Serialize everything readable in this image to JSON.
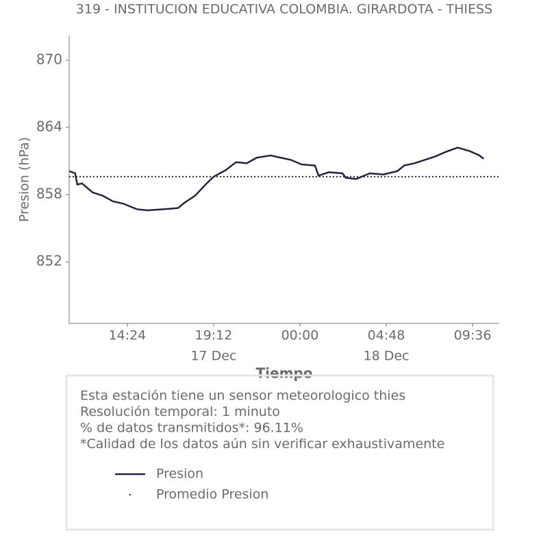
{
  "chart_data": {
    "type": "line",
    "title": "319 - INSTITUCION EDUCATIVA COLOMBIA. GIRARDOTA - THIESS",
    "xlabel": "Tiempo",
    "ylabel": "Presion (hPa)",
    "x": [
      "17 Dec 11:10",
      "17 Dec 11:30",
      "17 Dec 11:37",
      "17 Dec 11:53",
      "17 Dec 12:28",
      "17 Dec 13:02",
      "17 Dec 13:36",
      "17 Dec 14:10",
      "17 Dec 14:56",
      "17 Dec 15:30",
      "17 Dec 16:28",
      "17 Dec 17:13",
      "17 Dec 17:36",
      "17 Dec 18:10",
      "17 Dec 18:45",
      "17 Dec 19:12",
      "17 Dec 19:53",
      "17 Dec 20:27",
      "17 Dec 21:02",
      "17 Dec 21:36",
      "17 Dec 22:22",
      "17 Dec 22:56",
      "17 Dec 23:30",
      "18 Dec 00:05",
      "18 Dec 00:50",
      "18 Dec 01:02",
      "18 Dec 01:36",
      "18 Dec 02:22",
      "18 Dec 02:33",
      "18 Dec 03:08",
      "18 Dec 03:53",
      "18 Dec 04:39",
      "18 Dec 05:25",
      "18 Dec 05:48",
      "18 Dec 06:22",
      "18 Dec 06:56",
      "18 Dec 07:31",
      "18 Dec 08:05",
      "18 Dec 08:46",
      "18 Dec 09:25",
      "18 Dec 09:59",
      "18 Dec 10:13"
    ],
    "series": [
      {
        "name": "Presion",
        "color": "#23233f",
        "values": [
          860.1,
          859.9,
          858.9,
          859.0,
          858.2,
          857.9,
          857.4,
          857.2,
          856.7,
          856.6,
          856.7,
          856.8,
          857.3,
          857.9,
          858.9,
          859.6,
          860.2,
          860.9,
          860.8,
          861.3,
          861.5,
          861.3,
          861.1,
          860.7,
          860.6,
          859.7,
          860.0,
          859.9,
          859.5,
          859.4,
          859.9,
          859.8,
          860.1,
          860.6,
          860.8,
          861.1,
          861.4,
          861.8,
          862.2,
          861.9,
          861.5,
          861.2
        ]
      }
    ],
    "mean_line": {
      "name": "Promedio Presion",
      "color": "#23233f",
      "value": 859.6
    },
    "xlim": [
      "17 Dec 11:10",
      "18 Dec 11:05"
    ],
    "xticks": [
      {
        "value": "17 Dec 14:24",
        "label": "14:24"
      },
      {
        "value": "17 Dec 19:12",
        "label": "19:12"
      },
      {
        "value": "18 Dec 00:00",
        "label": "00:00"
      },
      {
        "value": "18 Dec 04:48",
        "label": "04:48"
      },
      {
        "value": "18 Dec 09:36",
        "label": "09:36"
      }
    ],
    "xtick_sublabels": [
      {
        "value": "17 Dec 19:12",
        "label": "17 Dec"
      },
      {
        "value": "18 Dec 04:48",
        "label": "18 Dec"
      }
    ],
    "ylim": [
      846.5,
      872.2
    ],
    "yticks": [
      852,
      858,
      864,
      870
    ],
    "info": [
      "Esta estación tiene un sensor meteorologico thies",
      "Resolución temporal: 1 minuto",
      "% de datos transmitidos*: 96.11%",
      "*Calidad de los datos aún sin verificar exhaustivamente"
    ]
  }
}
